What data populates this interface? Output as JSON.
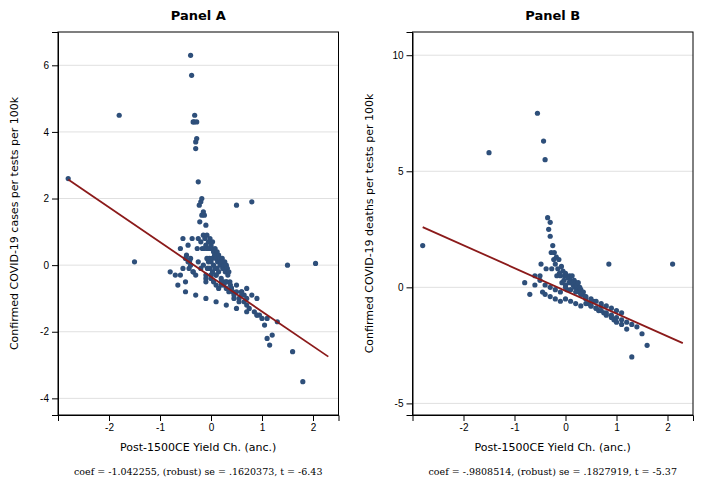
{
  "chart_data": [
    {
      "type": "scatter",
      "title": "Panel A",
      "x_label": "Post-1500CE Yield Ch. (anc.)",
      "y_label": "Confirmed COVID-19 cases per tests per 100k",
      "xlim": [
        -3.0,
        2.5
      ],
      "ylim": [
        -4.5,
        7.0
      ],
      "xticks": [
        -2,
        -1,
        0,
        1,
        2
      ],
      "yticks": [
        -4,
        -2,
        0,
        2,
        4,
        6
      ],
      "grid": true,
      "annotations": [
        "coef = -1.042255, (robust) se = .1620373, t = -6.43"
      ],
      "series": [
        {
          "type": "scatter",
          "color": "#2e4f7a",
          "x": [
            -2.8,
            -1.8,
            -1.5,
            -0.8,
            -0.7,
            -0.6,
            -0.55,
            -0.5,
            -0.48,
            -0.45,
            -0.43,
            -0.42,
            -0.4,
            -0.4,
            -0.38,
            -0.37,
            -0.35,
            -0.35,
            -0.33,
            -0.32,
            -0.3,
            -0.3,
            -0.28,
            -0.28,
            -0.27,
            -0.25,
            -0.25,
            -0.23,
            -0.22,
            -0.2,
            -0.2,
            -0.18,
            -0.18,
            -0.17,
            -0.15,
            -0.15,
            -0.13,
            -0.13,
            -0.12,
            -0.1,
            -0.1,
            -0.1,
            -0.08,
            -0.08,
            -0.07,
            -0.07,
            -0.05,
            -0.05,
            -0.03,
            -0.03,
            -0.02,
            -0.02,
            0.0,
            0.0,
            0.0,
            0.02,
            0.02,
            0.03,
            0.03,
            0.05,
            0.05,
            0.07,
            0.08,
            0.08,
            0.1,
            0.1,
            0.12,
            0.12,
            0.13,
            0.15,
            0.15,
            0.17,
            0.18,
            0.2,
            0.2,
            0.22,
            0.23,
            0.25,
            0.25,
            0.27,
            0.28,
            0.3,
            0.3,
            0.32,
            0.33,
            0.35,
            0.37,
            0.38,
            0.4,
            0.43,
            0.45,
            0.5,
            0.55,
            0.6,
            0.65,
            0.7,
            0.75,
            0.8,
            0.85,
            0.9,
            0.95,
            1.0,
            1.05,
            1.1,
            1.15,
            1.2,
            1.5,
            1.6,
            1.8,
            2.05,
            -0.65,
            -0.6,
            -0.55,
            -0.5,
            -0.45,
            -0.4,
            -0.35,
            -0.3,
            -0.25,
            -0.2,
            -0.15,
            -0.1,
            -0.05,
            0.0,
            0.05,
            0.1,
            0.15,
            0.2,
            0.25,
            0.3,
            0.35,
            0.4,
            0.45,
            0.5,
            0.55,
            0.6,
            0.65,
            0.7,
            -0.1,
            0.0,
            0.1,
            0.2,
            0.3,
            0.4,
            0.5,
            0.6,
            0.7,
            0.8,
            0.9,
            -0.5,
            -0.3,
            -0.1,
            0.1,
            0.3,
            0.5,
            0.7,
            0.9,
            1.1,
            1.3
          ],
          "values": [
            2.6,
            4.5,
            0.1,
            -0.2,
            -0.3,
            0.5,
            0.8,
            -0.5,
            0.3,
            0.6,
            -0.1,
            0.1,
            6.3,
            0.2,
            5.7,
            0.8,
            4.3,
            -0.2,
            4.3,
            4.5,
            3.5,
            3.7,
            3.8,
            4.3,
            0.5,
            2.5,
            0.8,
            1.8,
            1.3,
            1.9,
            0.7,
            1.5,
            2.0,
            0.5,
            1.6,
            0.9,
            1.5,
            0.5,
            0.8,
            1.2,
            0.6,
            -0.3,
            0.9,
            0.2,
            0.5,
            -0.1,
            0.7,
            0.1,
            0.5,
            0.2,
            0.8,
            -0.1,
            0.6,
            0.1,
            -0.3,
            0.5,
            0.2,
            0.7,
            -0.2,
            0.4,
            0.0,
            0.3,
            0.5,
            -0.1,
            0.2,
            -0.3,
            0.4,
            -0.1,
            0.1,
            0.3,
            -0.2,
            0.2,
            0.0,
            0.1,
            -0.4,
            0.2,
            -0.1,
            0.0,
            -0.5,
            0.1,
            -0.2,
            0.0,
            -0.5,
            -0.1,
            -0.3,
            -0.2,
            -0.5,
            -0.6,
            -0.7,
            -0.8,
            -1.0,
            1.8,
            -1.1,
            -0.8,
            -0.9,
            -1.2,
            -1.3,
            1.9,
            -1.4,
            -1.5,
            -1.5,
            -1.6,
            -1.8,
            -2.2,
            -2.4,
            -2.1,
            0.0,
            -2.6,
            -3.5,
            0.05,
            -0.6,
            -0.3,
            -0.1,
            0.2,
            0.1,
            0.0,
            -0.2,
            -0.3,
            0.1,
            -0.1,
            0.0,
            -0.4,
            -0.1,
            -0.3,
            -0.5,
            -0.6,
            -0.7,
            -0.5,
            -0.6,
            -0.7,
            -0.8,
            -0.7,
            -0.9,
            -0.8,
            -1.0,
            -0.9,
            -1.1,
            -1.0,
            -0.5,
            -0.4,
            -0.3,
            -0.6,
            -0.5,
            -0.7,
            -0.6,
            -0.8,
            -0.7,
            -0.9,
            -1.0,
            -0.8,
            -0.9,
            -1.0,
            -1.1,
            -1.2,
            -1.3,
            -1.4,
            -1.5,
            -1.6,
            -1.7
          ]
        },
        {
          "type": "line",
          "color": "#8b1a1a",
          "x": [
            -2.8,
            2.3
          ],
          "values": [
            2.568314,
            -2.7471865
          ]
        }
      ]
    },
    {
      "type": "scatter",
      "title": "Panel B",
      "x_label": "Post-1500CE Yield Ch. (anc.)",
      "y_label": "Confirmed COVID-19 deaths per tests per 100k",
      "xlim": [
        -3.0,
        2.5
      ],
      "ylim": [
        -5.5,
        11.0
      ],
      "xticks": [
        -2,
        -1,
        0,
        1,
        2
      ],
      "yticks": [
        -5,
        0,
        5,
        10
      ],
      "grid": true,
      "annotations": [
        "coef = -.9808514, (robust) se = .1827919, t = -5.37"
      ],
      "series": [
        {
          "type": "scatter",
          "color": "#2e4f7a",
          "x": [
            -2.8,
            -1.5,
            -0.8,
            -0.7,
            -0.6,
            -0.55,
            -0.5,
            -0.48,
            -0.45,
            -0.43,
            -0.4,
            -0.38,
            -0.35,
            -0.33,
            -0.3,
            -0.3,
            -0.28,
            -0.27,
            -0.25,
            -0.23,
            -0.22,
            -0.2,
            -0.18,
            -0.17,
            -0.15,
            -0.13,
            -0.12,
            -0.1,
            -0.08,
            -0.07,
            -0.05,
            -0.03,
            -0.02,
            0.0,
            0.0,
            0.02,
            0.03,
            0.05,
            0.07,
            0.08,
            0.1,
            0.12,
            0.13,
            0.15,
            0.17,
            0.18,
            0.2,
            0.22,
            0.23,
            0.25,
            0.27,
            0.28,
            0.3,
            0.33,
            0.35,
            0.38,
            0.4,
            0.45,
            0.5,
            0.55,
            0.6,
            0.65,
            0.7,
            0.75,
            0.8,
            0.85,
            0.9,
            0.95,
            1.0,
            1.1,
            1.2,
            1.3,
            1.5,
            1.6,
            2.1,
            -0.6,
            -0.5,
            -0.4,
            -0.3,
            -0.2,
            -0.1,
            0.0,
            0.1,
            0.2,
            0.3,
            0.4,
            0.5,
            0.6,
            0.7,
            0.8,
            0.9,
            1.0,
            1.1,
            -0.4,
            -0.3,
            -0.2,
            -0.1,
            0.0,
            0.1,
            0.2,
            0.3,
            0.4,
            0.5,
            0.6,
            0.7,
            0.8,
            0.9,
            1.0,
            1.1,
            1.2,
            1.3,
            1.4
          ],
          "values": [
            1.8,
            5.8,
            0.2,
            -0.3,
            0.1,
            7.5,
            0.5,
            1.0,
            -0.2,
            6.3,
            5.5,
            0.8,
            3.0,
            2.5,
            2.2,
            2.8,
            1.5,
            0.8,
            1.8,
            1.2,
            1.5,
            1.0,
            1.3,
            0.5,
            0.8,
            1.2,
            0.6,
            0.5,
            0.9,
            0.2,
            0.7,
            0.3,
            0.5,
            0.6,
            0.1,
            0.5,
            -0.1,
            0.4,
            0.2,
            0.5,
            0.3,
            0.2,
            0.5,
            0.1,
            0.3,
            0.0,
            0.2,
            0.1,
            -0.1,
            0.2,
            -0.2,
            0.0,
            -0.1,
            -0.3,
            -0.2,
            -0.4,
            -0.5,
            -0.7,
            -0.8,
            -0.6,
            -0.9,
            -1.0,
            -0.8,
            -1.1,
            -1.2,
            1.0,
            -1.3,
            -1.4,
            -1.5,
            -1.6,
            -1.8,
            -3.0,
            -2.0,
            -2.5,
            1.0,
            0.5,
            0.3,
            0.1,
            0.0,
            -0.1,
            -0.2,
            0.0,
            -0.1,
            -0.2,
            -0.3,
            -0.4,
            -0.5,
            -0.6,
            -0.7,
            -0.8,
            -0.9,
            -1.0,
            -1.1,
            -0.3,
            -0.4,
            -0.5,
            -0.6,
            -0.5,
            -0.6,
            -0.7,
            -0.8,
            -0.7,
            -0.8,
            -0.9,
            -1.0,
            -1.1,
            -1.2,
            -1.3,
            -1.4,
            -1.5,
            -1.6,
            -1.7
          ]
        },
        {
          "type": "line",
          "color": "#8b1a1a",
          "x": [
            -2.8,
            2.3
          ],
          "values": [
            2.59638392,
            -2.40595822
          ]
        }
      ]
    }
  ]
}
